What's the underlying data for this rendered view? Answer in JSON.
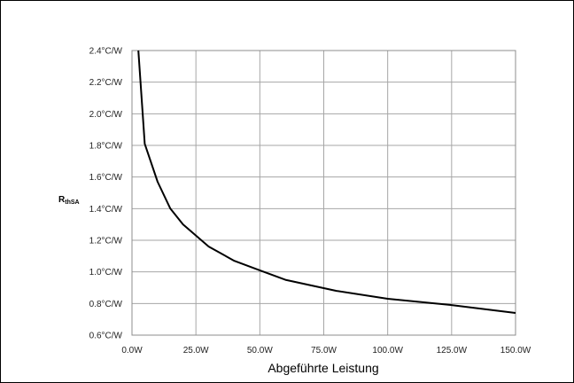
{
  "chart_data": {
    "type": "line",
    "title": "",
    "xlabel": "Abgeführte Leistung",
    "ylabel": {
      "main": "R",
      "sub": "thSA"
    },
    "xlim": [
      0,
      150
    ],
    "ylim": [
      0.6,
      2.4
    ],
    "x_ticks": [
      0,
      25,
      50,
      75,
      100,
      125,
      150
    ],
    "x_tick_labels": [
      "0.0W",
      "25.0W",
      "50.0W",
      "75.0W",
      "100.0W",
      "125.0W",
      "150.0W"
    ],
    "y_ticks": [
      0.6,
      0.8,
      1.0,
      1.2,
      1.4,
      1.6,
      1.8,
      2.0,
      2.2,
      2.4
    ],
    "y_tick_labels": [
      "0.6°C/W",
      "0.8°C/W",
      "1.0°C/W",
      "1.2°C/W",
      "1.4°C/W",
      "1.6°C/W",
      "1.8°C/W",
      "2.0°C/W",
      "2.2°C/W",
      "2.4°C/W"
    ],
    "grid": true,
    "series": [
      {
        "color": "#000000",
        "x": [
          2.5,
          5,
          10,
          15,
          20,
          30,
          40,
          50,
          60,
          80,
          100,
          125,
          150
        ],
        "y": [
          2.4,
          1.81,
          1.57,
          1.4,
          1.3,
          1.16,
          1.07,
          1.01,
          0.95,
          0.88,
          0.83,
          0.79,
          0.74
        ]
      }
    ]
  }
}
